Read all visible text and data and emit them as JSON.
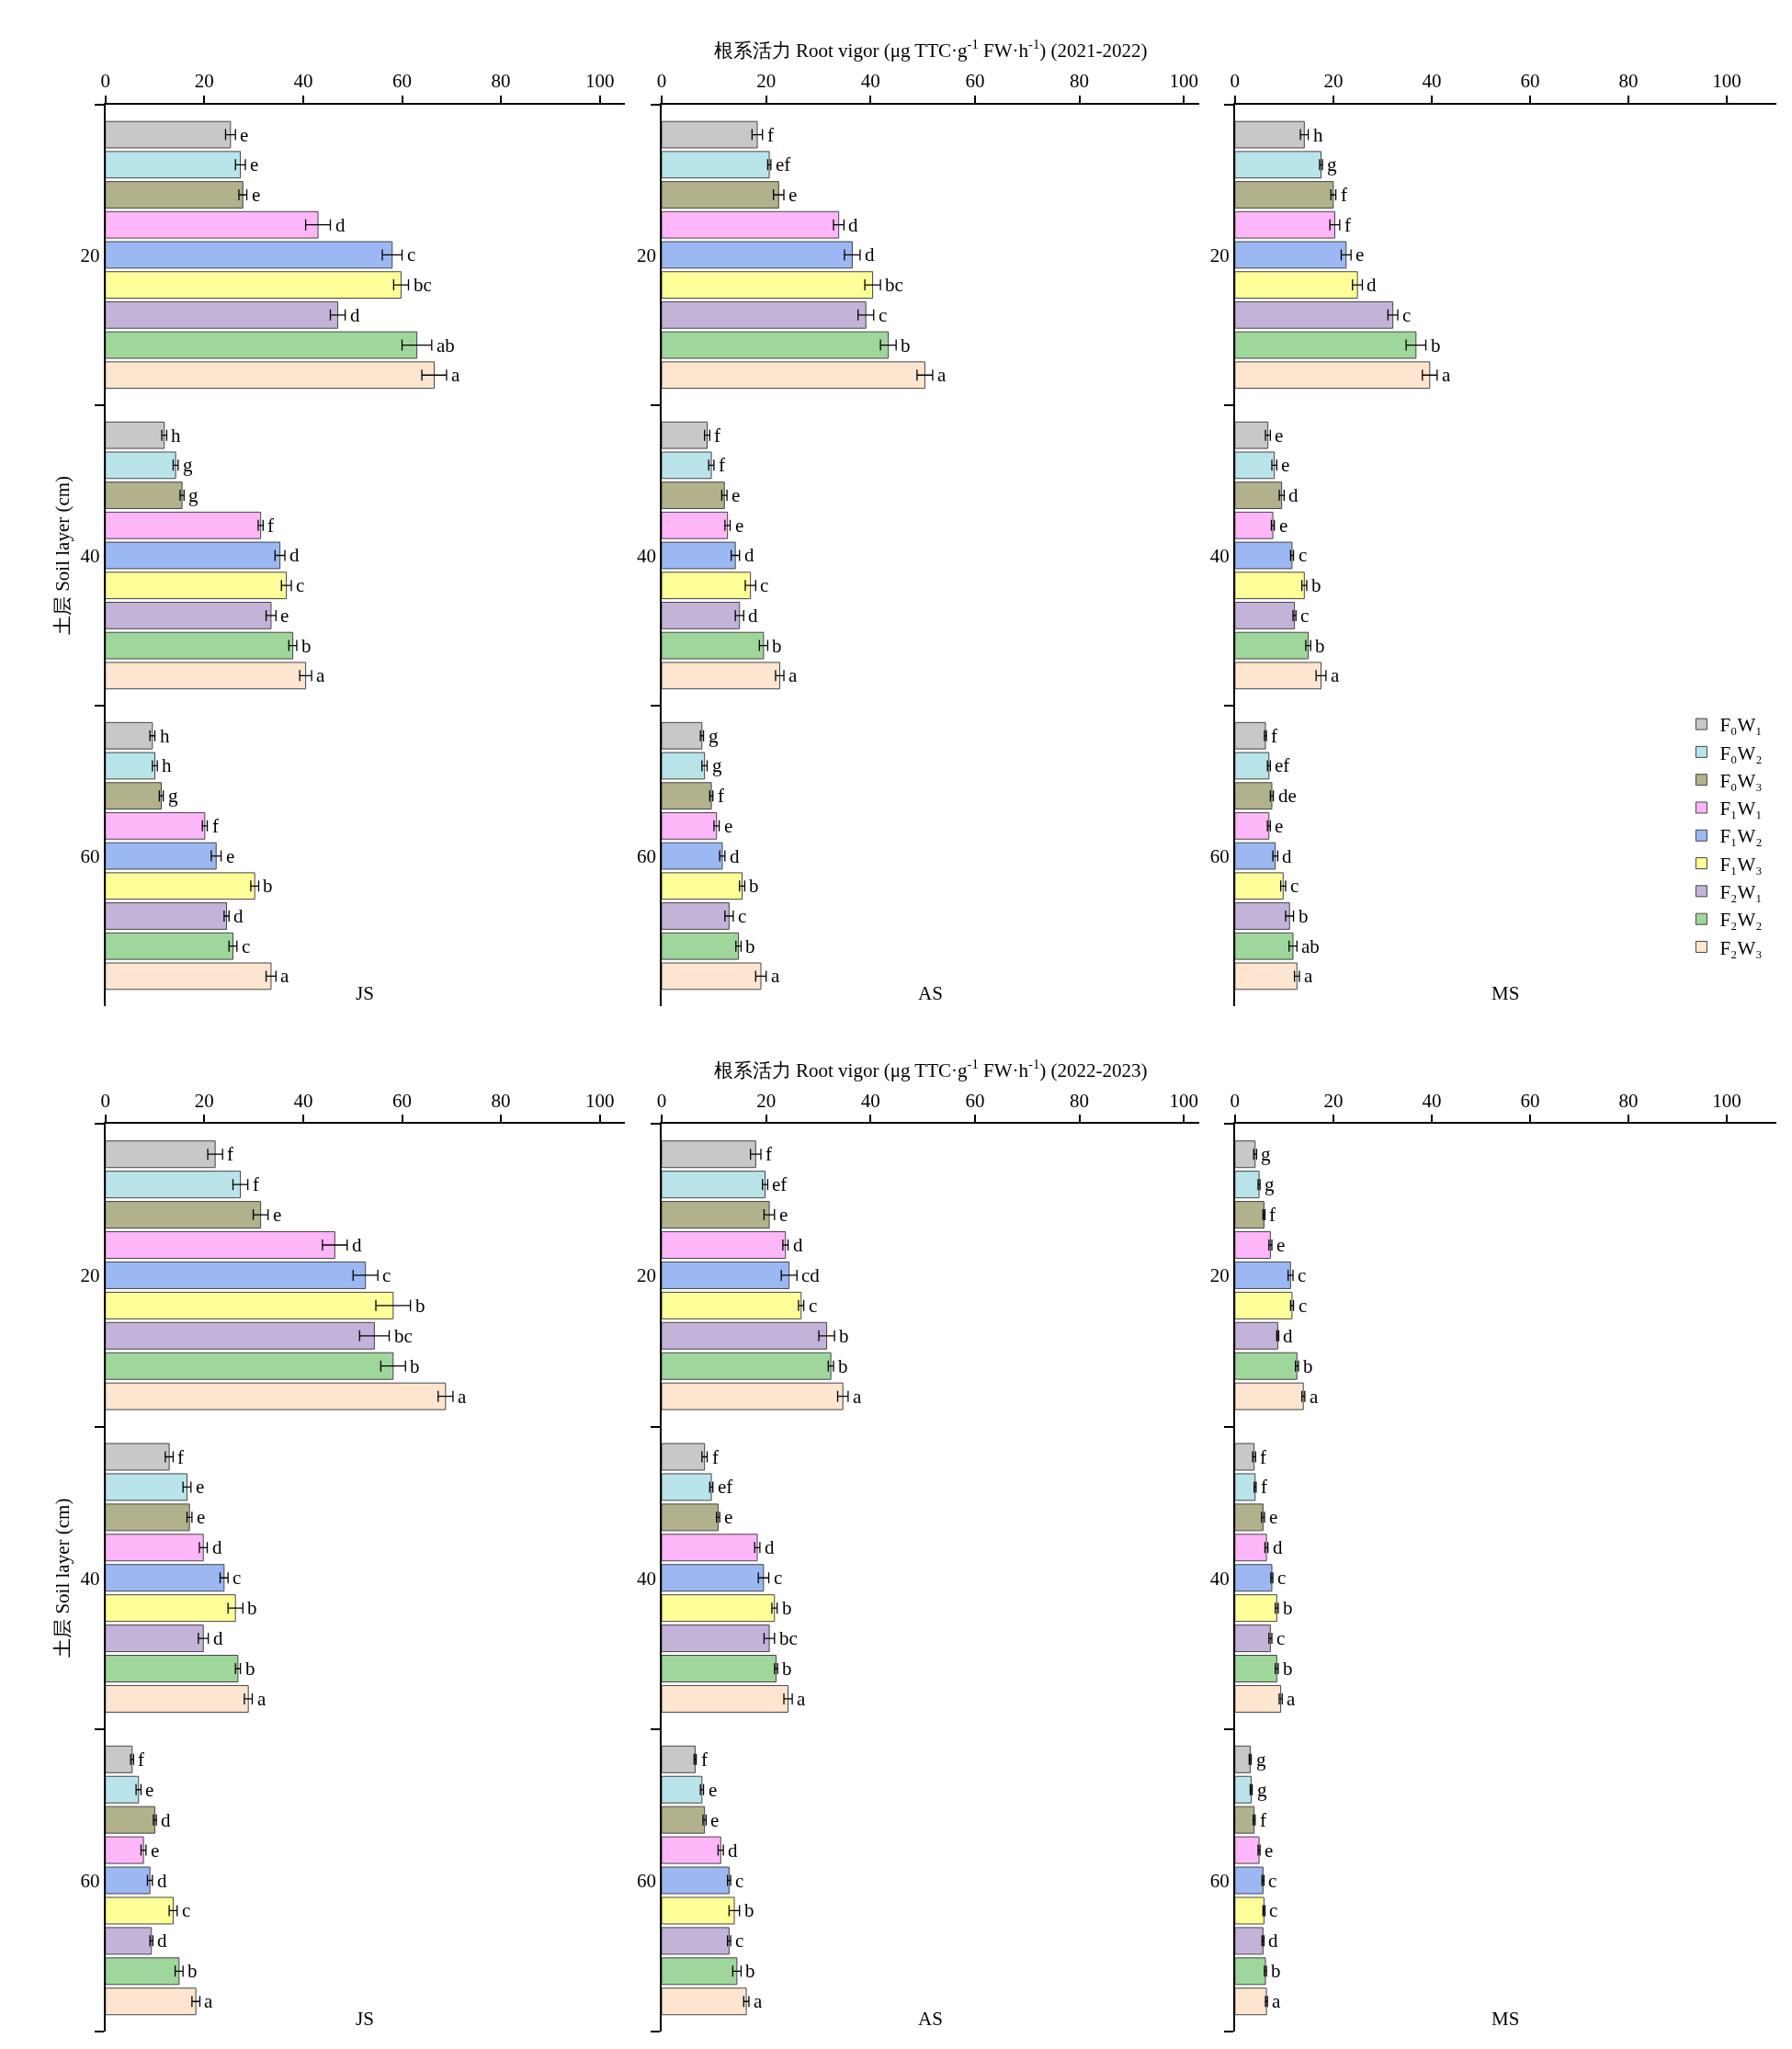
{
  "chart_data": [
    {
      "type": "bar",
      "orientation": "horizontal",
      "categories": [
        "20",
        "40",
        "60"
      ],
      "xlim": [
        0,
        105
      ],
      "xticks": [
        0,
        20,
        40,
        60,
        80,
        100
      ],
      "ylabel": "土层 Soil layer (cm)",
      "annotations": [
        "JS"
      ],
      "series": [
        {
          "color": "#c8c8c8",
          "values": [
            25.3,
            11.9,
            9.5
          ],
          "errors": [
            1,
            0.5,
            0.5
          ],
          "value_labels": [
            "e",
            "h",
            "h"
          ]
        },
        {
          "color": "#b8e4ea",
          "values": [
            27.3,
            14.2,
            10
          ],
          "errors": [
            1,
            0.5,
            0.5
          ],
          "value_labels": [
            "e",
            "g",
            "h"
          ]
        },
        {
          "color": "#b1b18c",
          "values": [
            27.8,
            15.5,
            11.3
          ],
          "errors": [
            0.8,
            0.4,
            0.4
          ],
          "value_labels": [
            "e",
            "g",
            "g"
          ]
        },
        {
          "color": "#fdb6f7",
          "values": [
            43,
            31.4,
            20.1
          ],
          "errors": [
            2.5,
            0.5,
            0.5
          ],
          "value_labels": [
            "d",
            "f",
            "f"
          ]
        },
        {
          "color": "#9bb8f2",
          "values": [
            58,
            35.3,
            22.4
          ],
          "errors": [
            2,
            1,
            1
          ],
          "value_labels": [
            "c",
            "d",
            "e"
          ]
        },
        {
          "color": "#ffff99",
          "values": [
            59.8,
            36.6,
            30.2
          ],
          "errors": [
            1.5,
            1,
            0.8
          ],
          "value_labels": [
            "bc",
            "c",
            "b"
          ]
        },
        {
          "color": "#c3b3d9",
          "values": [
            47,
            33.5,
            24.5
          ],
          "errors": [
            1.5,
            1,
            0.5
          ],
          "value_labels": [
            "d",
            "e",
            "d"
          ]
        },
        {
          "color": "#9fd69b",
          "values": [
            63,
            37.9,
            25.8
          ],
          "errors": [
            3,
            0.8,
            0.8
          ],
          "value_labels": [
            "ab",
            "b",
            "c"
          ]
        },
        {
          "color": "#fde5cf",
          "values": [
            66.5,
            40.5,
            33.5
          ],
          "errors": [
            2.5,
            1.2,
            1
          ],
          "value_labels": [
            "a",
            "a",
            "a"
          ]
        }
      ]
    },
    {
      "type": "bar",
      "orientation": "horizontal",
      "categories": [
        "20",
        "40",
        "60"
      ],
      "xlim": [
        0,
        103
      ],
      "xticks": [
        0,
        20,
        40,
        60,
        80,
        100
      ],
      "xlabel": "根系活力 Root vigor (μg TTC·g$^{-1}$ FW·h$^{-1}$) (2021-2022)",
      "annotations": [
        "AS"
      ],
      "series": [
        {
          "color": "#c8c8c8",
          "values": [
            18.3,
            8.7,
            7.7
          ],
          "errors": [
            1,
            0.5,
            0.3
          ],
          "value_labels": [
            "f",
            "f",
            "g"
          ]
        },
        {
          "color": "#b8e4ea",
          "values": [
            20.6,
            9.5,
            8.2
          ],
          "errors": [
            0.3,
            0.5,
            0.5
          ],
          "value_labels": [
            "ef",
            "f",
            "g"
          ]
        },
        {
          "color": "#b1b18c",
          "values": [
            22.4,
            12,
            9.5
          ],
          "errors": [
            1,
            0.5,
            0.3
          ],
          "value_labels": [
            "e",
            "e",
            "f"
          ]
        },
        {
          "color": "#fdb6f7",
          "values": [
            33.9,
            12.6,
            10.5
          ],
          "errors": [
            1,
            0.5,
            0.5
          ],
          "value_labels": [
            "d",
            "e",
            "e"
          ]
        },
        {
          "color": "#9bb8f2",
          "values": [
            36.5,
            14.1,
            11.6
          ],
          "errors": [
            1.5,
            0.8,
            0.5
          ],
          "value_labels": [
            "d",
            "d",
            "d"
          ]
        },
        {
          "color": "#ffff99",
          "values": [
            40.4,
            17,
            15.4
          ],
          "errors": [
            1.5,
            1,
            0.5
          ],
          "value_labels": [
            "bc",
            "c",
            "b"
          ]
        },
        {
          "color": "#c3b3d9",
          "values": [
            39.1,
            14.9,
            12.9
          ],
          "errors": [
            1.5,
            0.8,
            0.8
          ],
          "value_labels": [
            "c",
            "d",
            "c"
          ]
        },
        {
          "color": "#9fd69b",
          "values": [
            43.4,
            19.5,
            14.7
          ],
          "errors": [
            1.5,
            0.8,
            0.5
          ],
          "value_labels": [
            "b",
            "b",
            "b"
          ]
        },
        {
          "color": "#fde5cf",
          "values": [
            50.4,
            22.6,
            19
          ],
          "errors": [
            1.5,
            0.8,
            1
          ],
          "value_labels": [
            "a",
            "a",
            "a"
          ]
        }
      ]
    },
    {
      "type": "bar",
      "orientation": "horizontal",
      "categories": [
        "20",
        "40",
        "60"
      ],
      "xlim": [
        0,
        110
      ],
      "xticks": [
        0,
        20,
        40,
        60,
        80,
        100
      ],
      "annotations": [
        "MS"
      ],
      "legend": "bottom right",
      "series": [
        {
          "name": "F₀W₁",
          "color": "#c8c8c8",
          "values": [
            14.1,
            6.7,
            6.2
          ],
          "errors": [
            0.8,
            0.5,
            0.2
          ],
          "value_labels": [
            "h",
            "e",
            "f"
          ]
        },
        {
          "name": "F₀W₂",
          "color": "#b8e4ea",
          "values": [
            17.5,
            8,
            6.9
          ],
          "errors": [
            0.3,
            0.5,
            0.3
          ],
          "value_labels": [
            "g",
            "e",
            "ef"
          ]
        },
        {
          "name": "F₀W₃",
          "color": "#b1b18c",
          "values": [
            20,
            9.5,
            7.5
          ],
          "errors": [
            0.5,
            0.5,
            0.3
          ],
          "value_labels": [
            "f",
            "d",
            "de"
          ]
        },
        {
          "name": "F₁W₁",
          "color": "#fdb6f7",
          "values": [
            20.3,
            7.7,
            6.9
          ],
          "errors": [
            1,
            0.3,
            0.3
          ],
          "value_labels": [
            "f",
            "e",
            "e"
          ]
        },
        {
          "name": "F₁W₂",
          "color": "#9bb8f2",
          "values": [
            22.6,
            11.6,
            8.2
          ],
          "errors": [
            1,
            0.3,
            0.5
          ],
          "value_labels": [
            "e",
            "c",
            "d"
          ]
        },
        {
          "name": "F₁W₃",
          "color": "#ffff99",
          "values": [
            24.9,
            14.1,
            9.8
          ],
          "errors": [
            1,
            0.5,
            0.5
          ],
          "value_labels": [
            "d",
            "b",
            "c"
          ]
        },
        {
          "name": "F₂W₁",
          "color": "#c3b3d9",
          "values": [
            32.1,
            12.1,
            11.1
          ],
          "errors": [
            1,
            0.3,
            0.8
          ],
          "value_labels": [
            "c",
            "c",
            "b"
          ]
        },
        {
          "name": "F₂W₂",
          "color": "#9fd69b",
          "values": [
            36.8,
            14.9,
            11.8
          ],
          "errors": [
            2,
            0.5,
            0.8
          ],
          "value_labels": [
            "b",
            "b",
            "ab"
          ]
        },
        {
          "name": "F₂W₃",
          "color": "#fde5cf",
          "values": [
            39.6,
            17.5,
            12.6
          ],
          "errors": [
            1.5,
            1,
            0.5
          ],
          "value_labels": [
            "a",
            "a",
            "a"
          ]
        }
      ]
    },
    {
      "type": "bar",
      "orientation": "horizontal",
      "categories": [
        "20",
        "40",
        "60"
      ],
      "xlim": [
        0,
        105
      ],
      "xticks": [
        0,
        20,
        40,
        60,
        80,
        100
      ],
      "ylabel": "土层 Soil layer (cm)",
      "annotations": [
        "JS"
      ],
      "series": [
        {
          "color": "#c8c8c8",
          "values": [
            22.2,
            12.9,
            5.4
          ],
          "errors": [
            1.5,
            0.8,
            0.3
          ],
          "value_labels": [
            "f",
            "f",
            "f"
          ]
        },
        {
          "color": "#b8e4ea",
          "values": [
            27.3,
            16.5,
            6.7
          ],
          "errors": [
            1.5,
            0.8,
            0.5
          ],
          "value_labels": [
            "f",
            "e",
            "e"
          ]
        },
        {
          "color": "#b1b18c",
          "values": [
            31.4,
            17,
            10
          ],
          "errors": [
            1.5,
            0.5,
            0.3
          ],
          "value_labels": [
            "e",
            "e",
            "d"
          ]
        },
        {
          "color": "#fdb6f7",
          "values": [
            46.4,
            19.8,
            7.7
          ],
          "errors": [
            2.5,
            0.8,
            0.5
          ],
          "value_labels": [
            "d",
            "d",
            "e"
          ]
        },
        {
          "color": "#9bb8f2",
          "values": [
            52.6,
            24,
            9
          ],
          "errors": [
            2.5,
            0.8,
            0.5
          ],
          "value_labels": [
            "c",
            "c",
            "d"
          ]
        },
        {
          "color": "#ffff99",
          "values": [
            58.2,
            26.3,
            13.7
          ],
          "errors": [
            3.5,
            1.5,
            0.8
          ],
          "value_labels": [
            "b",
            "b",
            "c"
          ]
        },
        {
          "color": "#c3b3d9",
          "values": [
            54.4,
            19.8,
            9.3
          ],
          "errors": [
            3,
            1,
            0.3
          ],
          "value_labels": [
            "bc",
            "d",
            "d"
          ]
        },
        {
          "color": "#9fd69b",
          "values": [
            58.2,
            26.8,
            14.9
          ],
          "errors": [
            2.5,
            0.5,
            0.8
          ],
          "value_labels": [
            "b",
            "b",
            "b"
          ]
        },
        {
          "color": "#fde5cf",
          "values": [
            68.8,
            28.9,
            18.3
          ],
          "errors": [
            1.5,
            0.8,
            0.8
          ],
          "value_labels": [
            "a",
            "a",
            "a"
          ]
        }
      ]
    },
    {
      "type": "bar",
      "orientation": "horizontal",
      "categories": [
        "20",
        "40",
        "60"
      ],
      "xlim": [
        0,
        103
      ],
      "xticks": [
        0,
        20,
        40,
        60,
        80,
        100
      ],
      "xlabel": "根系活力 Root vigor (μg TTC·g$^{-1}$ FW·h$^{-1}$) (2022-2023)",
      "annotations": [
        "AS"
      ],
      "series": [
        {
          "color": "#c8c8c8",
          "values": [
            18,
            8.2,
            6.4
          ],
          "errors": [
            1,
            0.5,
            0.2
          ],
          "value_labels": [
            "f",
            "f",
            "f"
          ]
        },
        {
          "color": "#b8e4ea",
          "values": [
            19.8,
            9.5,
            7.7
          ],
          "errors": [
            0.5,
            0.3,
            0.3
          ],
          "value_labels": [
            "ef",
            "ef",
            "e"
          ]
        },
        {
          "color": "#b1b18c",
          "values": [
            20.6,
            10.8,
            8.2
          ],
          "errors": [
            1,
            0.3,
            0.3
          ],
          "value_labels": [
            "e",
            "e",
            "e"
          ]
        },
        {
          "color": "#fdb6f7",
          "values": [
            23.7,
            18.3,
            11.3
          ],
          "errors": [
            0.5,
            0.5,
            0.5
          ],
          "value_labels": [
            "d",
            "d",
            "d"
          ]
        },
        {
          "color": "#9bb8f2",
          "values": [
            24.4,
            19.5,
            12.9
          ],
          "errors": [
            1.5,
            1,
            0.3
          ],
          "value_labels": [
            "cd",
            "c",
            "c"
          ]
        },
        {
          "color": "#ffff99",
          "values": [
            26.7,
            21.6,
            13.9
          ],
          "errors": [
            0.5,
            0.5,
            1
          ],
          "value_labels": [
            "c",
            "b",
            "b"
          ]
        },
        {
          "color": "#c3b3d9",
          "values": [
            31.6,
            20.6,
            12.9
          ],
          "errors": [
            1.5,
            1,
            0.3
          ],
          "value_labels": [
            "b",
            "bc",
            "c"
          ]
        },
        {
          "color": "#9fd69b",
          "values": [
            32.4,
            21.9,
            14.4
          ],
          "errors": [
            0.5,
            0.3,
            0.8
          ],
          "value_labels": [
            "b",
            "b",
            "b"
          ]
        },
        {
          "color": "#fde5cf",
          "values": [
            34.7,
            24.2,
            16.2
          ],
          "errors": [
            1,
            0.8,
            0.5
          ],
          "value_labels": [
            "a",
            "a",
            "a"
          ]
        }
      ]
    },
    {
      "type": "bar",
      "orientation": "horizontal",
      "categories": [
        "20",
        "40",
        "60"
      ],
      "xlim": [
        0,
        110
      ],
      "xticks": [
        0,
        20,
        40,
        60,
        80,
        100
      ],
      "annotations": [
        "MS"
      ],
      "series": [
        {
          "color": "#c8c8c8",
          "values": [
            4.1,
            3.9,
            3.1
          ],
          "errors": [
            0.3,
            0.3,
            0.2
          ],
          "value_labels": [
            "g",
            "f",
            "g"
          ]
        },
        {
          "color": "#b8e4ea",
          "values": [
            4.9,
            4.1,
            3.3
          ],
          "errors": [
            0.2,
            0.2,
            0.2
          ],
          "value_labels": [
            "g",
            "f",
            "g"
          ]
        },
        {
          "color": "#b1b18c",
          "values": [
            5.9,
            5.7,
            3.9
          ],
          "errors": [
            0.2,
            0.3,
            0.2
          ],
          "value_labels": [
            "f",
            "e",
            "f"
          ]
        },
        {
          "color": "#fdb6f7",
          "values": [
            7.2,
            6.4,
            4.9
          ],
          "errors": [
            0.3,
            0.3,
            0.2
          ],
          "value_labels": [
            "e",
            "d",
            "e"
          ]
        },
        {
          "color": "#9bb8f2",
          "values": [
            11.3,
            7.5,
            5.7
          ],
          "errors": [
            0.5,
            0.2,
            0.2
          ],
          "value_labels": [
            "c",
            "c",
            "c"
          ]
        },
        {
          "color": "#ffff99",
          "values": [
            11.6,
            8.5,
            5.9
          ],
          "errors": [
            0.3,
            0.3,
            0.2
          ],
          "value_labels": [
            "c",
            "b",
            "c"
          ]
        },
        {
          "color": "#c3b3d9",
          "values": [
            8.7,
            7.2,
            5.7
          ],
          "errors": [
            0.2,
            0.3,
            0.2
          ],
          "value_labels": [
            "d",
            "c",
            "d"
          ]
        },
        {
          "color": "#9fd69b",
          "values": [
            12.6,
            8.5,
            6.2
          ],
          "errors": [
            0.3,
            0.3,
            0.2
          ],
          "value_labels": [
            "b",
            "b",
            "b"
          ]
        },
        {
          "color": "#fde5cf",
          "values": [
            13.9,
            9.3,
            6.4
          ],
          "errors": [
            0.3,
            0.3,
            0.2
          ],
          "value_labels": [
            "a",
            "a",
            "a"
          ]
        }
      ]
    }
  ]
}
